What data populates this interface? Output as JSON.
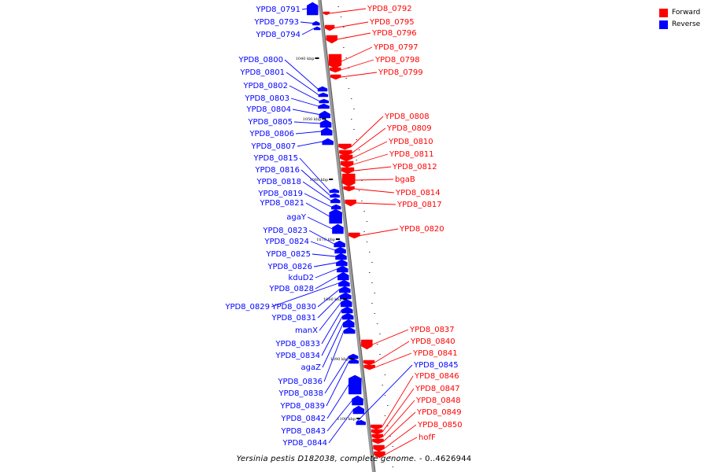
{
  "legend": [
    {
      "label": "Forward",
      "color": "#ff0000"
    },
    {
      "label": "Reverse",
      "color": "#0000ff"
    }
  ],
  "caption": {
    "organism": "Yersinia pestis D182038, complete genome.",
    "range": " - 0..4626944"
  },
  "ticks": [
    "1040 kbp",
    "1050 kbp",
    "1060 kbp",
    "1070 kbp",
    "1080 kbp",
    "1090 kbp",
    "1100 kbp"
  ],
  "genes": [
    {
      "name": "YPD8_0791",
      "strand": "reverse"
    },
    {
      "name": "YPD8_0792",
      "strand": "forward"
    },
    {
      "name": "YPD8_0793",
      "strand": "reverse"
    },
    {
      "name": "YPD8_0794",
      "strand": "reverse"
    },
    {
      "name": "YPD8_0795",
      "strand": "forward"
    },
    {
      "name": "YPD8_0796",
      "strand": "forward"
    },
    {
      "name": "YPD8_0797",
      "strand": "forward"
    },
    {
      "name": "YPD8_0798",
      "strand": "forward"
    },
    {
      "name": "YPD8_0799",
      "strand": "forward"
    },
    {
      "name": "YPD8_0800",
      "strand": "reverse"
    },
    {
      "name": "YPD8_0801",
      "strand": "reverse"
    },
    {
      "name": "YPD8_0802",
      "strand": "reverse"
    },
    {
      "name": "YPD8_0803",
      "strand": "reverse"
    },
    {
      "name": "YPD8_0804",
      "strand": "reverse"
    },
    {
      "name": "YPD8_0805",
      "strand": "reverse"
    },
    {
      "name": "YPD8_0806",
      "strand": "reverse"
    },
    {
      "name": "YPD8_0807",
      "strand": "reverse"
    },
    {
      "name": "YPD8_0808",
      "strand": "forward"
    },
    {
      "name": "YPD8_0809",
      "strand": "forward"
    },
    {
      "name": "YPD8_0810",
      "strand": "forward"
    },
    {
      "name": "YPD8_0811",
      "strand": "forward"
    },
    {
      "name": "YPD8_0812",
      "strand": "forward"
    },
    {
      "name": "bgaB",
      "strand": "forward"
    },
    {
      "name": "YPD8_0814",
      "strand": "forward"
    },
    {
      "name": "YPD8_0815",
      "strand": "reverse"
    },
    {
      "name": "YPD8_0816",
      "strand": "reverse"
    },
    {
      "name": "YPD8_0817",
      "strand": "forward"
    },
    {
      "name": "YPD8_0818",
      "strand": "reverse"
    },
    {
      "name": "YPD8_0819",
      "strand": "reverse"
    },
    {
      "name": "YPD8_0820",
      "strand": "forward"
    },
    {
      "name": "YPD8_0821",
      "strand": "reverse"
    },
    {
      "name": "agaY",
      "strand": "reverse"
    },
    {
      "name": "YPD8_0823",
      "strand": "reverse"
    },
    {
      "name": "YPD8_0824",
      "strand": "reverse"
    },
    {
      "name": "YPD8_0825",
      "strand": "reverse"
    },
    {
      "name": "YPD8_0826",
      "strand": "reverse"
    },
    {
      "name": "kduD2",
      "strand": "reverse"
    },
    {
      "name": "YPD8_0828",
      "strand": "reverse"
    },
    {
      "name": "YPD8_0829",
      "strand": "reverse"
    },
    {
      "name": "YPD8_0830",
      "strand": "reverse"
    },
    {
      "name": "YPD8_0831",
      "strand": "reverse"
    },
    {
      "name": "manX",
      "strand": "reverse"
    },
    {
      "name": "YPD8_0833",
      "strand": "reverse"
    },
    {
      "name": "YPD8_0834",
      "strand": "reverse"
    },
    {
      "name": "agaZ",
      "strand": "reverse"
    },
    {
      "name": "YPD8_0836",
      "strand": "reverse"
    },
    {
      "name": "YPD8_0837",
      "strand": "forward"
    },
    {
      "name": "YPD8_0838",
      "strand": "reverse"
    },
    {
      "name": "YPD8_0839",
      "strand": "reverse"
    },
    {
      "name": "YPD8_0840",
      "strand": "forward"
    },
    {
      "name": "YPD8_0841",
      "strand": "forward"
    },
    {
      "name": "YPD8_0842",
      "strand": "reverse"
    },
    {
      "name": "YPD8_0843",
      "strand": "reverse"
    },
    {
      "name": "YPD8_0844",
      "strand": "reverse"
    },
    {
      "name": "YPD8_0845",
      "strand": "reverse"
    },
    {
      "name": "YPD8_0846",
      "strand": "forward"
    },
    {
      "name": "YPD8_0847",
      "strand": "forward"
    },
    {
      "name": "YPD8_0848",
      "strand": "forward"
    },
    {
      "name": "YPD8_0849",
      "strand": "forward"
    },
    {
      "name": "YPD8_0850",
      "strand": "forward"
    },
    {
      "name": "hofF",
      "strand": "forward"
    }
  ]
}
